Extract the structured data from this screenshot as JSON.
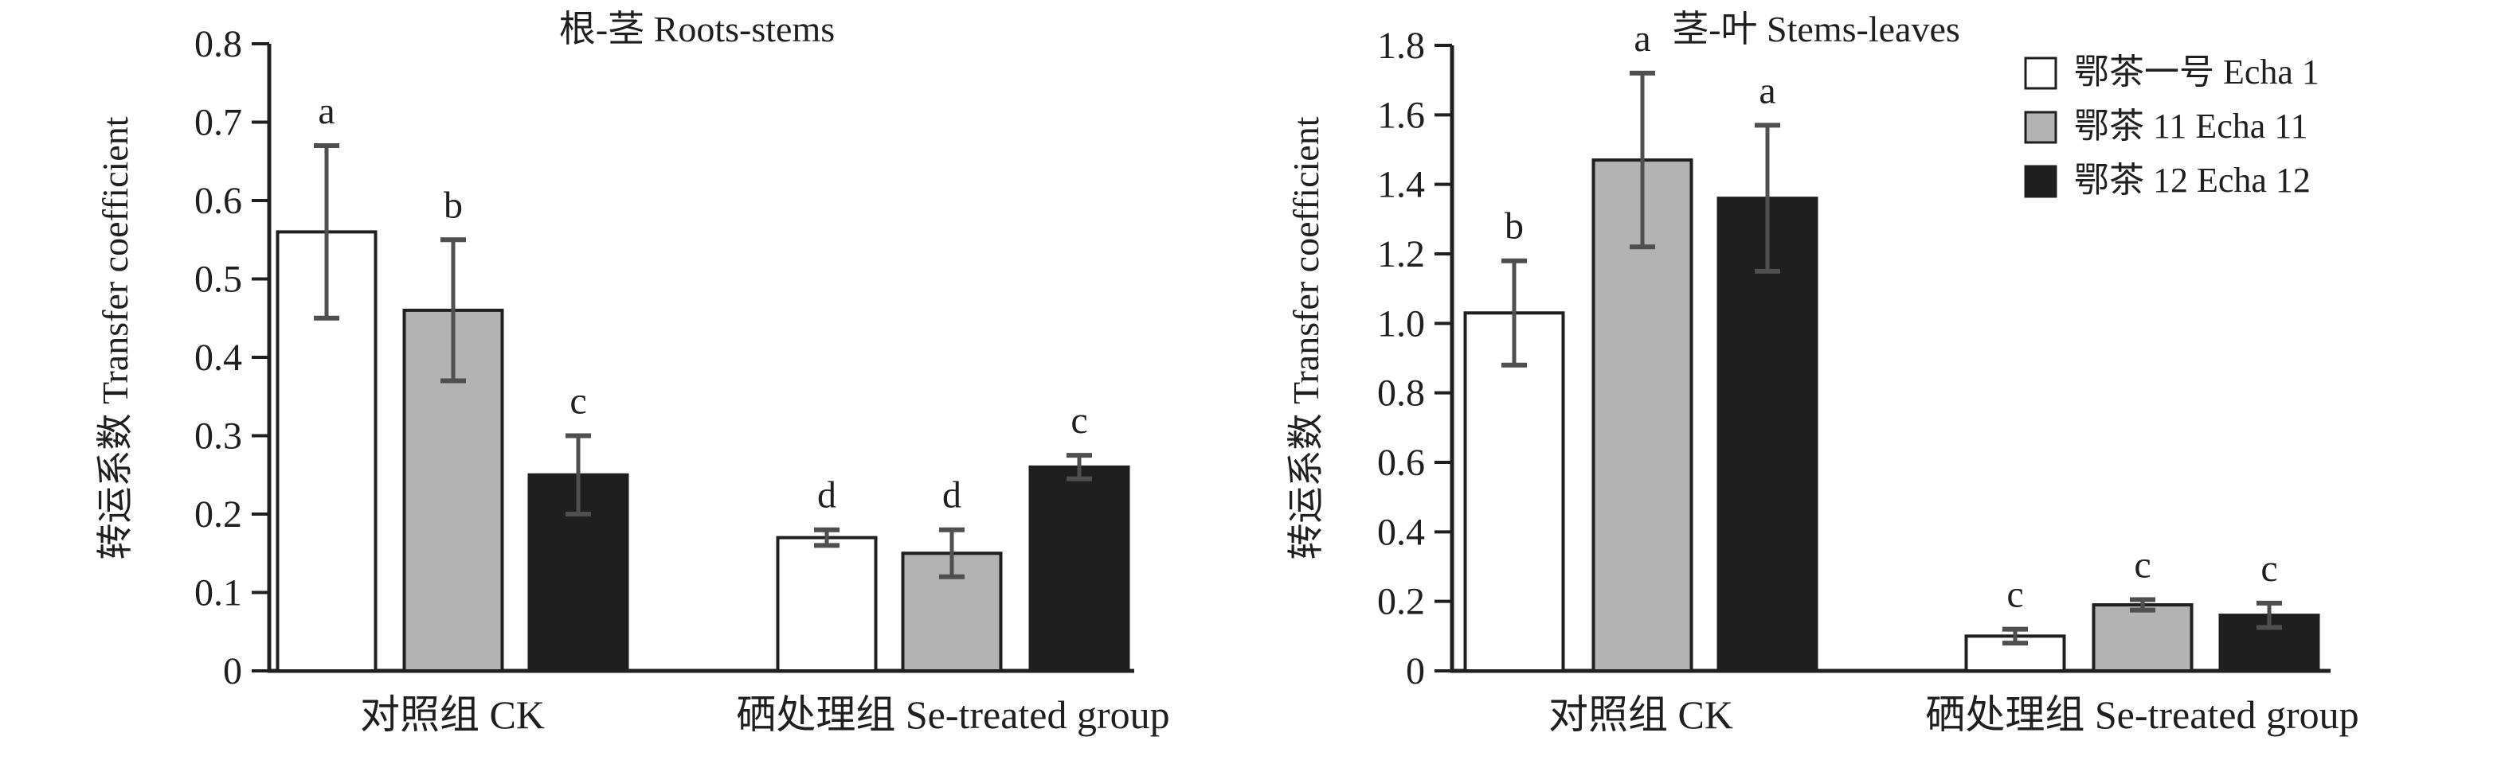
{
  "figure": {
    "background": "#ffffff",
    "description_left_panel": "根-茎 Roots-stems",
    "description_right_panel": "茎-叶 Stems-leaves"
  },
  "colors": {
    "axis": "#1f1f1f",
    "text": "#1f1f1f",
    "error_bar": "#4f4f4f",
    "bar_white": "#ffffff",
    "bar_gray": "#b3b3b3",
    "bar_black": "#1f1f1f"
  },
  "chart_data": [
    {
      "id": "chart-roots-stems",
      "type": "bar",
      "title": "根-茎 Roots-stems",
      "xlabel": "",
      "ylabel": "转运系数 Transfer coefficient",
      "ylim": [
        0,
        0.8
      ],
      "grid": false,
      "legend_position": "none",
      "yticks": [
        {
          "v": 0,
          "label": "0"
        },
        {
          "v": 0.1,
          "label": "0.1"
        },
        {
          "v": 0.2,
          "label": "0.2"
        },
        {
          "v": 0.3,
          "label": "0.3"
        },
        {
          "v": 0.4,
          "label": "0.4"
        },
        {
          "v": 0.5,
          "label": "0.5"
        },
        {
          "v": 0.6,
          "label": "0.6"
        },
        {
          "v": 0.7,
          "label": "0.7"
        },
        {
          "v": 0.8,
          "label": "0.8"
        }
      ],
      "categories": [
        {
          "key": "ck",
          "label": "对照组 CK"
        },
        {
          "key": "se",
          "label": "硒处理组 Se-treated group"
        }
      ],
      "series": [
        {
          "key": "echa1",
          "name": "鄂茶一号 Echa 1",
          "fill": "#ffffff",
          "values": [
            0.56,
            0.17
          ],
          "errors": [
            0.11,
            0.01
          ],
          "letters": [
            "a",
            "d"
          ]
        },
        {
          "key": "echa11",
          "name": "鄂茶 11 Echa 11",
          "fill": "#b3b3b3",
          "values": [
            0.46,
            0.15
          ],
          "errors": [
            0.09,
            0.03
          ],
          "letters": [
            "b",
            "d"
          ]
        },
        {
          "key": "echa12",
          "name": "鄂茶 12 Echa 12",
          "fill": "#1f1f1f",
          "values": [
            0.25,
            0.26
          ],
          "errors": [
            0.05,
            0.015
          ],
          "letters": [
            "c",
            "c"
          ]
        }
      ],
      "legend": null
    },
    {
      "id": "chart-stems-leaves",
      "type": "bar",
      "title": "茎-叶 Stems-leaves",
      "xlabel": "",
      "ylabel": "转运系数 Transfer coefficient",
      "ylim": [
        0,
        1.8
      ],
      "grid": false,
      "legend_position": "top-right",
      "yticks": [
        {
          "v": 0,
          "label": "0"
        },
        {
          "v": 0.2,
          "label": "0.2"
        },
        {
          "v": 0.4,
          "label": "0.4"
        },
        {
          "v": 0.6,
          "label": "0.6"
        },
        {
          "v": 0.8,
          "label": "0.8"
        },
        {
          "v": 1.0,
          "label": "1.0"
        },
        {
          "v": 1.2,
          "label": "1.2"
        },
        {
          "v": 1.4,
          "label": "1.4"
        },
        {
          "v": 1.6,
          "label": "1.6"
        },
        {
          "v": 1.8,
          "label": "1.8"
        }
      ],
      "categories": [
        {
          "key": "ck",
          "label": "对照组 CK"
        },
        {
          "key": "se",
          "label": "硒处理组 Se-treated group"
        }
      ],
      "series": [
        {
          "key": "echa1",
          "name": "鄂茶一号 Echa 1",
          "fill": "#ffffff",
          "values": [
            1.03,
            0.1
          ],
          "errors": [
            0.15,
            0.02
          ],
          "letters": [
            "b",
            "c"
          ]
        },
        {
          "key": "echa11",
          "name": "鄂茶 11 Echa 11",
          "fill": "#b3b3b3",
          "values": [
            1.47,
            0.19
          ],
          "errors": [
            0.25,
            0.015
          ],
          "letters": [
            "a",
            "c"
          ]
        },
        {
          "key": "echa12",
          "name": "鄂茶 12 Echa 12",
          "fill": "#1f1f1f",
          "values": [
            1.36,
            0.16
          ],
          "errors": [
            0.21,
            0.035
          ],
          "letters": [
            "a",
            "c"
          ]
        }
      ],
      "legend": {
        "items": [
          {
            "key": "echa1",
            "label": "鄂茶一号 Echa 1",
            "fill": "#ffffff"
          },
          {
            "key": "echa11",
            "label": "鄂茶 11 Echa 11",
            "fill": "#b3b3b3"
          },
          {
            "key": "echa12",
            "label": "鄂茶 12 Echa 12",
            "fill": "#1f1f1f"
          }
        ]
      }
    }
  ]
}
